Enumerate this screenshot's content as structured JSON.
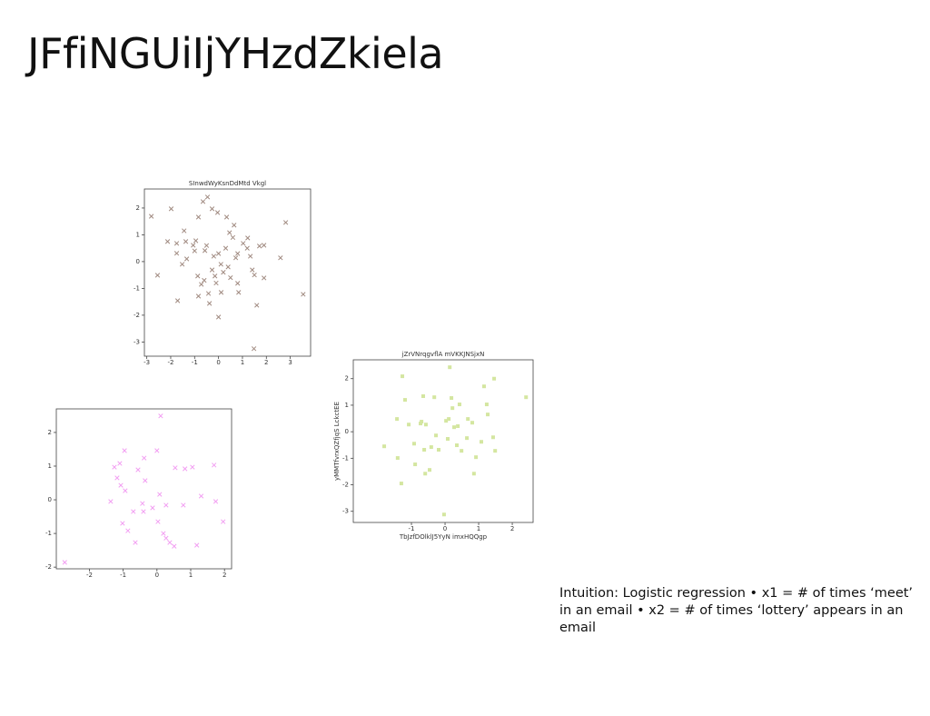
{
  "title": "JFfiNGUiIjYHzdZkiela",
  "caption": "Intuition: Logistic regression • x1 = # of times ‘meet’ in an email • x2 = # of times ‘lottery’ appears in an email",
  "chart_data": [
    {
      "type": "scatter",
      "title": "SInwdWyKsnDdMtd Vkgl",
      "color": "#a08a80",
      "marker": "x",
      "x": [
        -2.81,
        -2.55,
        -2.13,
        -1.98,
        -1.75,
        -1.75,
        -1.71,
        -1.52,
        -1.44,
        -1.37,
        -1.33,
        -1.06,
        -0.95,
        -0.87,
        -0.84,
        -0.84,
        -0.72,
        -0.65,
        -0.57,
        -0.46,
        -0.42,
        -0.38,
        -0.27,
        -0.27,
        -0.15,
        -0.04,
        0,
        0.11,
        0.34,
        0.46,
        0.65,
        0.72,
        0.8,
        0.84,
        1.03,
        1.22,
        1.33,
        1.41,
        1.48,
        1.6,
        1.71,
        1.9,
        1.9,
        2.59,
        2.81,
        3.54,
        -0.5,
        -0.2,
        0.1,
        0.3,
        0.5,
        -0.6,
        0.2,
        0.8,
        1.2,
        -0.1,
        0.6,
        1.5,
        -1.0,
        0.0,
        0.4
      ],
      "values": [
        1.69,
        -0.51,
        0.75,
        1.97,
        0.68,
        0.31,
        -1.46,
        -0.1,
        1.15,
        0.75,
        0.1,
        0.61,
        0.78,
        -0.54,
        1.66,
        -1.29,
        -0.85,
        2.24,
        0.41,
        2.41,
        -1.19,
        -1.56,
        1.97,
        -0.31,
        -0.54,
        1.83,
        -2.07,
        -1.15,
        1.66,
        1.08,
        1.36,
        0.14,
        -0.81,
        -1.15,
        0.68,
        0.88,
        0.2,
        -0.31,
        -3.25,
        -1.63,
        0.58,
        0.61,
        -0.61,
        0.14,
        1.46,
        -1.22,
        0.6,
        0.2,
        -0.1,
        0.5,
        -0.6,
        -0.7,
        -0.4,
        0.3,
        0.5,
        -0.8,
        0.9,
        -0.5,
        0.4,
        0.3,
        -0.2
      ],
      "xlim": [
        -3.1,
        3.85
      ],
      "ylim": [
        -3.53,
        2.71
      ],
      "xticks": [
        -3,
        -2,
        -1,
        0,
        1,
        2,
        3
      ],
      "yticks": [
        -3,
        -2,
        -1,
        0,
        1,
        2
      ]
    },
    {
      "type": "scatter",
      "color": "#f29ef2",
      "marker": "x",
      "x": [
        -2.73,
        -1.37,
        -1.26,
        -1.18,
        -1.1,
        -1.07,
        -0.96,
        -0.94,
        -1.02,
        -0.86,
        -0.7,
        -0.64,
        -0.56,
        -0.43,
        -0.4,
        -0.38,
        -0.35,
        -0.13,
        0,
        0.03,
        0.11,
        0.08,
        0.19,
        0.27,
        0.27,
        0.38,
        0.51,
        0.54,
        0.78,
        0.83,
        1.05,
        1.18,
        1.31,
        1.69,
        1.74,
        1.96
      ],
      "values": [
        -1.86,
        -0.05,
        0.97,
        0.65,
        1.08,
        0.43,
        1.46,
        0.27,
        -0.7,
        -0.92,
        -0.35,
        -1.27,
        0.89,
        -0.11,
        -0.35,
        1.24,
        0.57,
        -0.24,
        1.46,
        -0.65,
        2.49,
        0.16,
        -1.0,
        -0.16,
        -1.14,
        -1.27,
        -1.38,
        0.95,
        -0.16,
        0.92,
        0.97,
        -1.35,
        0.11,
        1.03,
        -0.05,
        -0.65
      ],
      "xlim": [
        -2.98,
        2.21
      ],
      "ylim": [
        -2.05,
        2.7
      ],
      "xticks": [
        -2,
        -1,
        0,
        1,
        2
      ],
      "yticks": [
        -2,
        -1,
        0,
        1,
        2
      ]
    },
    {
      "type": "scatter",
      "title": "jZrVNrqgvflA mVKKJNSjxN",
      "x_label": "TbJzfDOlklJ5YyN imxHQQgp",
      "y_label": "yMMTfvrxQZfjqS LckctEE",
      "color": "#d4e6a0",
      "marker": "square",
      "x": [
        -1.81,
        -1.43,
        -1.41,
        -1.3,
        -1.27,
        -1.19,
        -1.08,
        -0.92,
        -0.89,
        -0.73,
        -0.7,
        -0.65,
        -0.62,
        -0.57,
        -0.59,
        -0.46,
        -0.41,
        -0.32,
        -0.27,
        -0.19,
        -0.03,
        0.03,
        0.08,
        0.11,
        0.14,
        0.19,
        0.22,
        0.27,
        0.35,
        0.38,
        0.43,
        0.49,
        0.65,
        0.68,
        0.81,
        0.86,
        0.92,
        1.08,
        1.16,
        1.24,
        1.27,
        1.43,
        1.46,
        1.49,
        2.41
      ],
      "values": [
        -0.55,
        0.48,
        -0.99,
        -1.95,
        2.09,
        1.2,
        0.27,
        -0.45,
        -1.23,
        0.31,
        0.38,
        1.34,
        -0.68,
        0.27,
        -1.58,
        -1.44,
        -0.58,
        1.3,
        -0.14,
        -0.68,
        -3.12,
        0.41,
        -0.27,
        0.48,
        2.43,
        1.27,
        0.89,
        0.17,
        -0.51,
        0.21,
        1.03,
        -0.72,
        -0.24,
        0.48,
        0.34,
        -1.58,
        -0.96,
        -0.38,
        1.71,
        1.03,
        0.65,
        -0.21,
        2.0,
        -0.72,
        1.3
      ],
      "xlim": [
        -2.73,
        2.62
      ],
      "ylim": [
        -3.42,
        2.71
      ],
      "xticks": [
        -1,
        0,
        1,
        2
      ],
      "yticks": [
        -3,
        -2,
        -1,
        0,
        1,
        2
      ]
    }
  ]
}
